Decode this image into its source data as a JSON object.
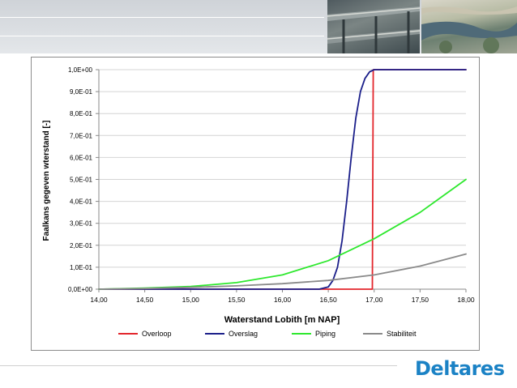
{
  "chart_data": {
    "type": "line",
    "xlabel": "Waterstand Lobith [m NAP]",
    "ylabel": "Faalkans gegeven wterstand [-]",
    "xlim": [
      14.0,
      18.0
    ],
    "ylim": [
      0.0,
      1.0
    ],
    "x_ticks": [
      "14,00",
      "14,50",
      "15,00",
      "15,50",
      "16,00",
      "16,50",
      "17,00",
      "17,50",
      "18,00"
    ],
    "y_ticks": [
      "0,0E+00",
      "1,0E-01",
      "2,0E-01",
      "3,0E-01",
      "4,0E-01",
      "5,0E-01",
      "6,0E-01",
      "7,0E-01",
      "8,0E-01",
      "9,0E-01",
      "1,0E+00"
    ],
    "grid": "horizontal",
    "legend_position": "bottom",
    "series": [
      {
        "name": "Overloop",
        "color": "#e3262c",
        "x": [
          14.0,
          16.98,
          16.99,
          18.0
        ],
        "y": [
          0.0,
          0.0,
          1.0,
          1.0
        ]
      },
      {
        "name": "Overslag",
        "color": "#1b1f8a",
        "x": [
          14.0,
          16.4,
          16.5,
          16.55,
          16.6,
          16.65,
          16.7,
          16.75,
          16.8,
          16.85,
          16.9,
          16.95,
          17.0,
          17.1,
          18.0
        ],
        "y": [
          0.0,
          0.0,
          0.01,
          0.04,
          0.1,
          0.22,
          0.4,
          0.6,
          0.78,
          0.9,
          0.96,
          0.99,
          1.0,
          1.0,
          1.0
        ]
      },
      {
        "name": "Piping",
        "color": "#2ee82e",
        "x": [
          14.0,
          14.5,
          15.0,
          15.5,
          16.0,
          16.5,
          17.0,
          17.5,
          18.0
        ],
        "y": [
          0.0,
          0.005,
          0.012,
          0.03,
          0.065,
          0.13,
          0.23,
          0.35,
          0.5
        ]
      },
      {
        "name": "Stabiliteit",
        "color": "#8a8a8a",
        "x": [
          14.0,
          14.5,
          15.0,
          15.5,
          16.0,
          16.5,
          17.0,
          17.5,
          18.0
        ],
        "y": [
          0.0,
          0.003,
          0.008,
          0.015,
          0.025,
          0.04,
          0.065,
          0.105,
          0.16
        ]
      }
    ]
  },
  "logo": {
    "text": "Deltares"
  }
}
